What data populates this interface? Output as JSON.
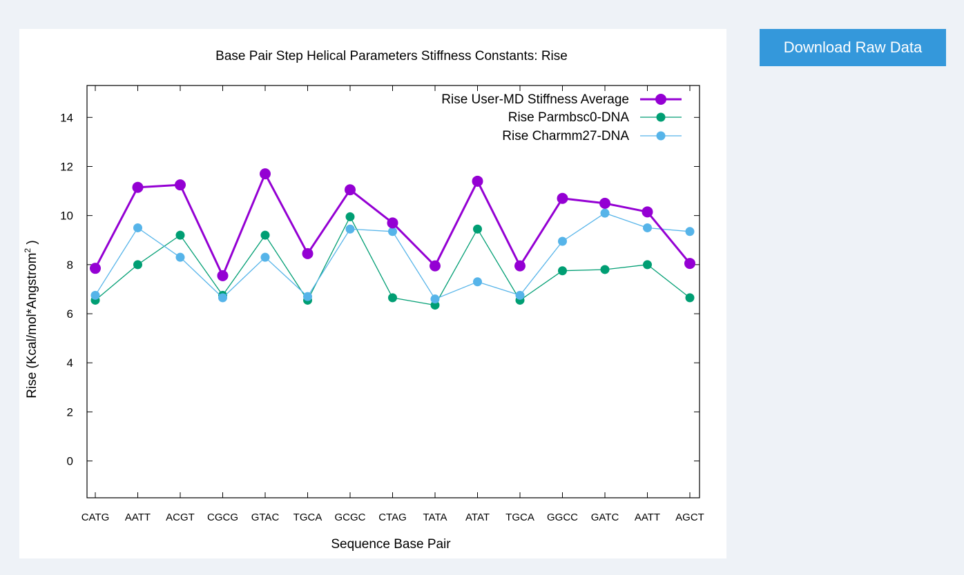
{
  "download_button": {
    "label": "Download Raw Data"
  },
  "colors": {
    "background": "#eef2f7",
    "button": "#3498db",
    "series_user_md": "#9400d3",
    "series_parmbsc0": "#009e73",
    "series_charmm27": "#56b4e9"
  },
  "chart_data": {
    "type": "line",
    "title": "Base Pair Step Helical Parameters Stiffness Constants: Rise",
    "xlabel": "Sequence Base Pair",
    "ylabel": "Rise (Kcal/mol*Angstrom",
    "ylabel_superscript": "2",
    "ylabel_suffix": " )",
    "categories": [
      "CATG",
      "AATT",
      "ACGT",
      "CGCG",
      "GTAC",
      "TGCA",
      "GCGC",
      "CTAG",
      "TATA",
      "ATAT",
      "TGCA",
      "GGCC",
      "GATC",
      "AATT",
      "AGCT"
    ],
    "ylim": [
      -1.5,
      15.3
    ],
    "yticks": [
      0,
      2,
      4,
      6,
      8,
      10,
      12,
      14
    ],
    "grid": false,
    "legend_position": "top-right",
    "series": [
      {
        "name": "Rise User-MD Stiffness Average",
        "color": "#9400d3",
        "style": "thick",
        "values": [
          7.85,
          11.15,
          11.25,
          7.55,
          11.7,
          8.45,
          11.05,
          9.7,
          7.95,
          11.4,
          7.95,
          10.7,
          10.5,
          10.15,
          8.05
        ]
      },
      {
        "name": "Rise Parmbsc0-DNA",
        "color": "#009e73",
        "style": "thin",
        "values": [
          6.55,
          8.0,
          9.2,
          6.75,
          9.2,
          6.55,
          9.95,
          6.65,
          6.35,
          9.45,
          6.55,
          7.75,
          7.8,
          8.0,
          6.65
        ]
      },
      {
        "name": "Rise Charmm27-DNA",
        "color": "#56b4e9",
        "style": "thin",
        "values": [
          6.75,
          9.5,
          8.3,
          6.65,
          8.3,
          6.7,
          9.45,
          9.35,
          6.6,
          7.3,
          6.75,
          8.95,
          10.1,
          9.5,
          9.35
        ]
      }
    ]
  }
}
